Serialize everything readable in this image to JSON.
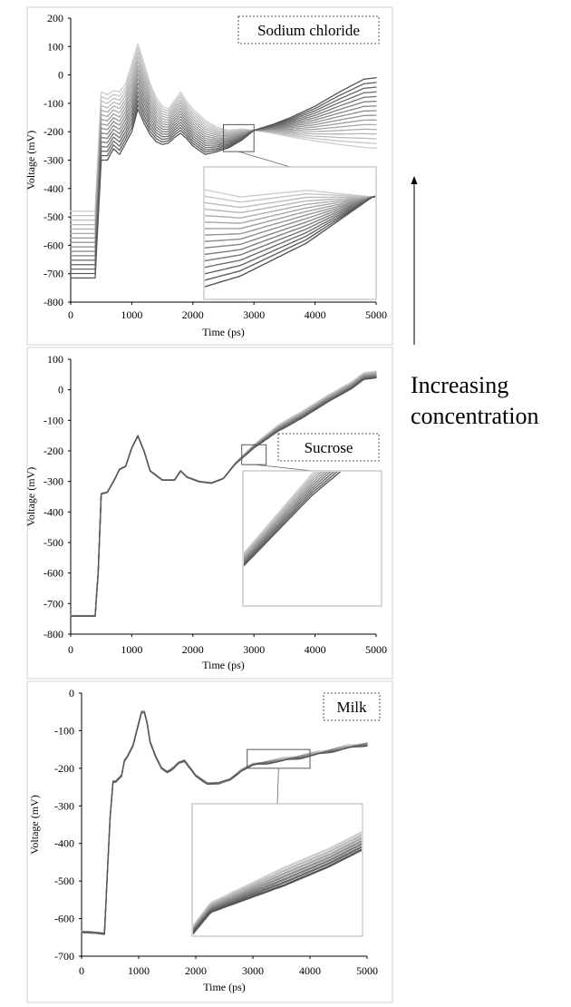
{
  "side_annotation": {
    "line1": "Increasing",
    "line2": "concentration"
  },
  "chart_data": [
    {
      "type": "line",
      "legend": "Sodium chloride",
      "xlabel": "Time (ps)",
      "ylabel": "Voltage (mV)",
      "xlim": [
        0,
        5000
      ],
      "ylim": [
        -800,
        200
      ],
      "xticks": [
        0,
        1000,
        2000,
        3000,
        4000,
        5000
      ],
      "yticks": [
        200,
        100,
        0,
        -100,
        -200,
        -300,
        -400,
        -500,
        -600,
        -700,
        -800
      ],
      "series_count": 16,
      "envelope": {
        "x": [
          0,
          400,
          500,
          600,
          700,
          800,
          900,
          1000,
          1100,
          1200,
          1300,
          1400,
          1500,
          1600,
          1700,
          1800,
          1900,
          2000,
          2200,
          2400,
          2600,
          2800,
          3000,
          3300,
          3600,
          4000,
          4400,
          4800,
          5000
        ],
        "y_low": [
          -715,
          -715,
          -300,
          -300,
          -260,
          -280,
          -240,
          -200,
          -120,
          -170,
          -210,
          -235,
          -245,
          -240,
          -220,
          -205,
          -225,
          -250,
          -280,
          -270,
          -255,
          -230,
          -195,
          -175,
          -150,
          -110,
          -60,
          -15,
          -10
        ],
        "y_high": [
          -480,
          -480,
          -60,
          -70,
          -55,
          -60,
          -30,
          40,
          110,
          40,
          -30,
          -80,
          -110,
          -120,
          -90,
          -60,
          -95,
          -120,
          -160,
          -185,
          -195,
          -190,
          -195,
          -205,
          -218,
          -232,
          -245,
          -255,
          -258
        ]
      },
      "inset": {
        "xlim": [
          2500,
          3000
        ],
        "ylim": [
          -270,
          -175
        ]
      }
    },
    {
      "type": "line",
      "legend": "Sucrose",
      "xlabel": "Time (ps)",
      "ylabel": "Voltage (mV)",
      "xlim": [
        0,
        5000
      ],
      "ylim": [
        -800,
        100
      ],
      "xticks": [
        0,
        1000,
        2000,
        3000,
        4000,
        5000
      ],
      "yticks": [
        100,
        0,
        -100,
        -200,
        -300,
        -400,
        -500,
        -600,
        -700,
        -800
      ],
      "series_count": 10,
      "base": {
        "x": [
          0,
          400,
          450,
          500,
          600,
          700,
          800,
          900,
          1000,
          1100,
          1200,
          1300,
          1500,
          1700,
          1800,
          1900,
          2100,
          2300,
          2500,
          2700,
          3000,
          3400,
          3800,
          4200,
          4600,
          4800,
          5000
        ],
        "y": [
          -740,
          -740,
          -600,
          -340,
          -335,
          -300,
          -260,
          -250,
          -190,
          -150,
          -200,
          -265,
          -295,
          -295,
          -265,
          -285,
          -300,
          -305,
          -290,
          -240,
          -185,
          -125,
          -80,
          -30,
          15,
          45,
          50
        ]
      },
      "spread": 22,
      "inset": {
        "xlim": [
          2800,
          3200
        ],
        "ylim": [
          -245,
          -180
        ]
      }
    },
    {
      "type": "line",
      "legend": "Milk",
      "xlabel": "Time (ps)",
      "ylabel": "Voltage (mV)",
      "xlim": [
        0,
        5000
      ],
      "ylim": [
        -700,
        0
      ],
      "xticks": [
        0,
        1000,
        2000,
        3000,
        4000,
        5000
      ],
      "yticks": [
        0,
        -100,
        -200,
        -300,
        -400,
        -500,
        -600,
        -700
      ],
      "series_count": 7,
      "base": {
        "x": [
          0,
          400,
          500,
          550,
          600,
          700,
          750,
          800,
          900,
          1000,
          1050,
          1100,
          1150,
          1200,
          1300,
          1400,
          1500,
          1600,
          1700,
          1800,
          1900,
          2000,
          2200,
          2400,
          2600,
          2800,
          3000,
          3400,
          3800,
          4200,
          4600,
          5000
        ],
        "y": [
          -635,
          -640,
          -330,
          -235,
          -235,
          -220,
          -180,
          -170,
          -140,
          -80,
          -50,
          -50,
          -80,
          -130,
          -170,
          -200,
          -210,
          -200,
          -185,
          -180,
          -200,
          -220,
          -240,
          -240,
          -230,
          -205,
          -190,
          -180,
          -170,
          -158,
          -145,
          -135
        ]
      },
      "spread": 7,
      "inset": {
        "xlim": [
          2900,
          4000
        ],
        "ylim": [
          -200,
          -150
        ]
      }
    }
  ]
}
